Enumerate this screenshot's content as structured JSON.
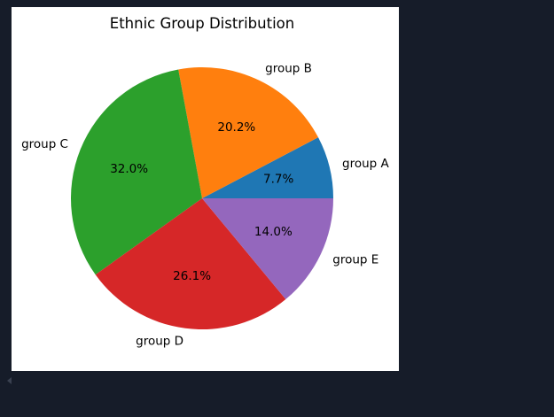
{
  "chart_data": {
    "type": "pie",
    "title": "Ethnic Group Distribution",
    "labels": [
      "group A",
      "group B",
      "group C",
      "group D",
      "group E"
    ],
    "values": [
      7.7,
      20.2,
      32.0,
      26.1,
      14.0
    ],
    "percent_labels": [
      "7.7%",
      "20.2%",
      "32.0%",
      "26.1%",
      "14.0%"
    ],
    "colors": [
      "#1f77b4",
      "#ff7f0e",
      "#2ca02c",
      "#d62728",
      "#9467bd"
    ],
    "start_angle_deg": 0,
    "direction": "counterclockwise"
  }
}
